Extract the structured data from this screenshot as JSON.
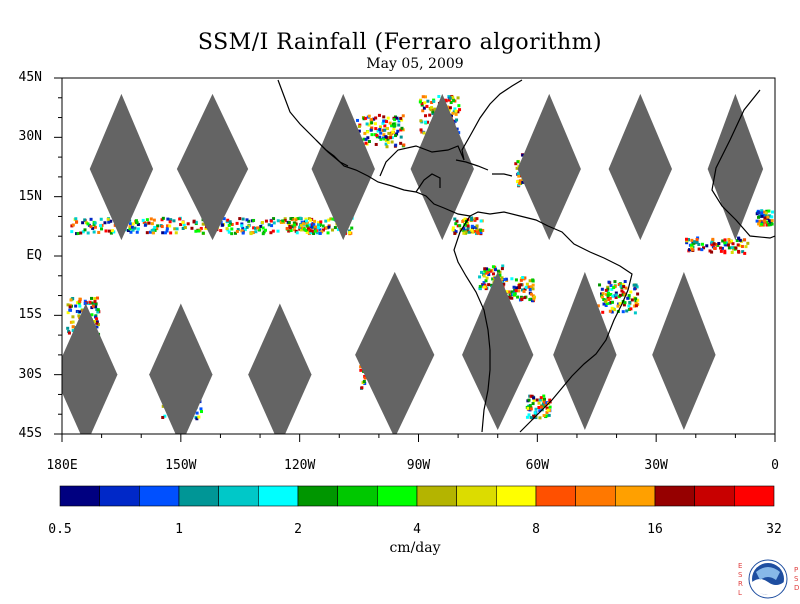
{
  "title": "SSM/I Rainfall (Ferraro algorithm)",
  "date": "May 05, 2009",
  "lat_labels": [
    {
      "lat": 45,
      "text": "45N"
    },
    {
      "lat": 30,
      "text": "30N"
    },
    {
      "lat": 15,
      "text": "15N"
    },
    {
      "lat": 0,
      "text": "EQ"
    },
    {
      "lat": -15,
      "text": "15S"
    },
    {
      "lat": -30,
      "text": "30S"
    },
    {
      "lat": -45,
      "text": "45S"
    }
  ],
  "lon_labels": [
    {
      "lon": -180,
      "text": "180E"
    },
    {
      "lon": -150,
      "text": "150W"
    },
    {
      "lon": -120,
      "text": "120W"
    },
    {
      "lon": -90,
      "text": "90W"
    },
    {
      "lon": -60,
      "text": "60W"
    },
    {
      "lon": -30,
      "text": "30W"
    },
    {
      "lon": 0,
      "text": "0"
    }
  ],
  "legend": {
    "colors": [
      "#000080",
      "#0028c8",
      "#0050ff",
      "#009696",
      "#00c8c8",
      "#00ffff",
      "#009600",
      "#00c800",
      "#00ff00",
      "#b4b400",
      "#dcdc00",
      "#ffff00",
      "#ff5000",
      "#ff7800",
      "#ffa000",
      "#960000",
      "#c80000",
      "#ff0000"
    ],
    "ticks": [
      "0.5",
      "1",
      "2",
      "4",
      "8",
      "16",
      "32"
    ],
    "units": "cm/day"
  },
  "logo": {
    "left_letters": [
      "E",
      "S",
      "R",
      "L"
    ],
    "right_letters": [
      "P",
      "S",
      "D"
    ],
    "name": "NOAA"
  },
  "colors": {
    "swath_gap": "#646464",
    "coast": "#000000"
  },
  "chart_data": {
    "type": "heatmap",
    "xlim": [
      -180,
      0
    ],
    "ylim": [
      -45,
      45
    ],
    "no_data_gaps": [
      {
        "lon": -165,
        "lat": 22,
        "half_width": 8,
        "lat_range": [
          4,
          41
        ]
      },
      {
        "lon": -142,
        "lat": 22,
        "half_width": 9,
        "lat_range": [
          4,
          41
        ]
      },
      {
        "lon": -109,
        "lat": 22,
        "half_width": 8,
        "lat_range": [
          4,
          41
        ]
      },
      {
        "lon": -84,
        "lat": 22,
        "half_width": 8,
        "lat_range": [
          4,
          41
        ]
      },
      {
        "lon": -57,
        "lat": 22,
        "half_width": 8,
        "lat_range": [
          4,
          41
        ]
      },
      {
        "lon": -34,
        "lat": 22,
        "half_width": 8,
        "lat_range": [
          4,
          41
        ]
      },
      {
        "lon": -10,
        "lat": 22,
        "half_width": 7,
        "lat_range": [
          4,
          41
        ]
      },
      {
        "lon": -174,
        "lat": -30,
        "half_width": 8,
        "lat_range": [
          -48,
          -12
        ]
      },
      {
        "lon": -150,
        "lat": -30,
        "half_width": 8,
        "lat_range": [
          -48,
          -12
        ]
      },
      {
        "lon": -125,
        "lat": -30,
        "half_width": 8,
        "lat_range": [
          -48,
          -12
        ]
      },
      {
        "lon": -96,
        "lat": -25,
        "half_width": 10,
        "lat_range": [
          -46,
          -4
        ]
      },
      {
        "lon": -70,
        "lat": -25,
        "half_width": 9,
        "lat_range": [
          -44,
          -4
        ]
      },
      {
        "lon": -48,
        "lat": -25,
        "half_width": 8,
        "lat_range": [
          -44,
          -4
        ]
      },
      {
        "lon": -23,
        "lat": -25,
        "half_width": 8,
        "lat_range": [
          -44,
          -4
        ]
      }
    ],
    "rain_clusters": [
      {
        "lon": -160,
        "lat": 8,
        "spread_lon": 18,
        "spread_lat": 2
      },
      {
        "lon": -130,
        "lat": 8,
        "spread_lon": 14,
        "spread_lat": 2
      },
      {
        "lon": -115,
        "lat": 8,
        "spread_lon": 8,
        "spread_lat": 2
      },
      {
        "lon": -150,
        "lat": -35,
        "spread_lon": 5,
        "spread_lat": 6
      },
      {
        "lon": -100,
        "lat": -28,
        "spread_lon": 5,
        "spread_lat": 6
      },
      {
        "lon": -72,
        "lat": -5,
        "spread_lon": 3,
        "spread_lat": 3
      },
      {
        "lon": -65,
        "lat": -8,
        "spread_lon": 4,
        "spread_lat": 3
      },
      {
        "lon": -40,
        "lat": -10,
        "spread_lon": 5,
        "spread_lat": 4
      },
      {
        "lon": -15,
        "lat": 3,
        "spread_lon": 8,
        "spread_lat": 2
      },
      {
        "lon": -3,
        "lat": 10,
        "spread_lon": 2,
        "spread_lat": 2
      },
      {
        "lon": -85,
        "lat": 35,
        "spread_lon": 5,
        "spread_lat": 6
      },
      {
        "lon": -100,
        "lat": 32,
        "spread_lon": 6,
        "spread_lat": 4
      },
      {
        "lon": -62,
        "lat": 22,
        "spread_lon": 4,
        "spread_lat": 4
      },
      {
        "lon": -78,
        "lat": 8,
        "spread_lon": 4,
        "spread_lat": 2
      },
      {
        "lon": -175,
        "lat": -15,
        "spread_lon": 4,
        "spread_lat": 5
      },
      {
        "lon": -60,
        "lat": -38,
        "spread_lon": 3,
        "spread_lat": 3
      }
    ]
  }
}
